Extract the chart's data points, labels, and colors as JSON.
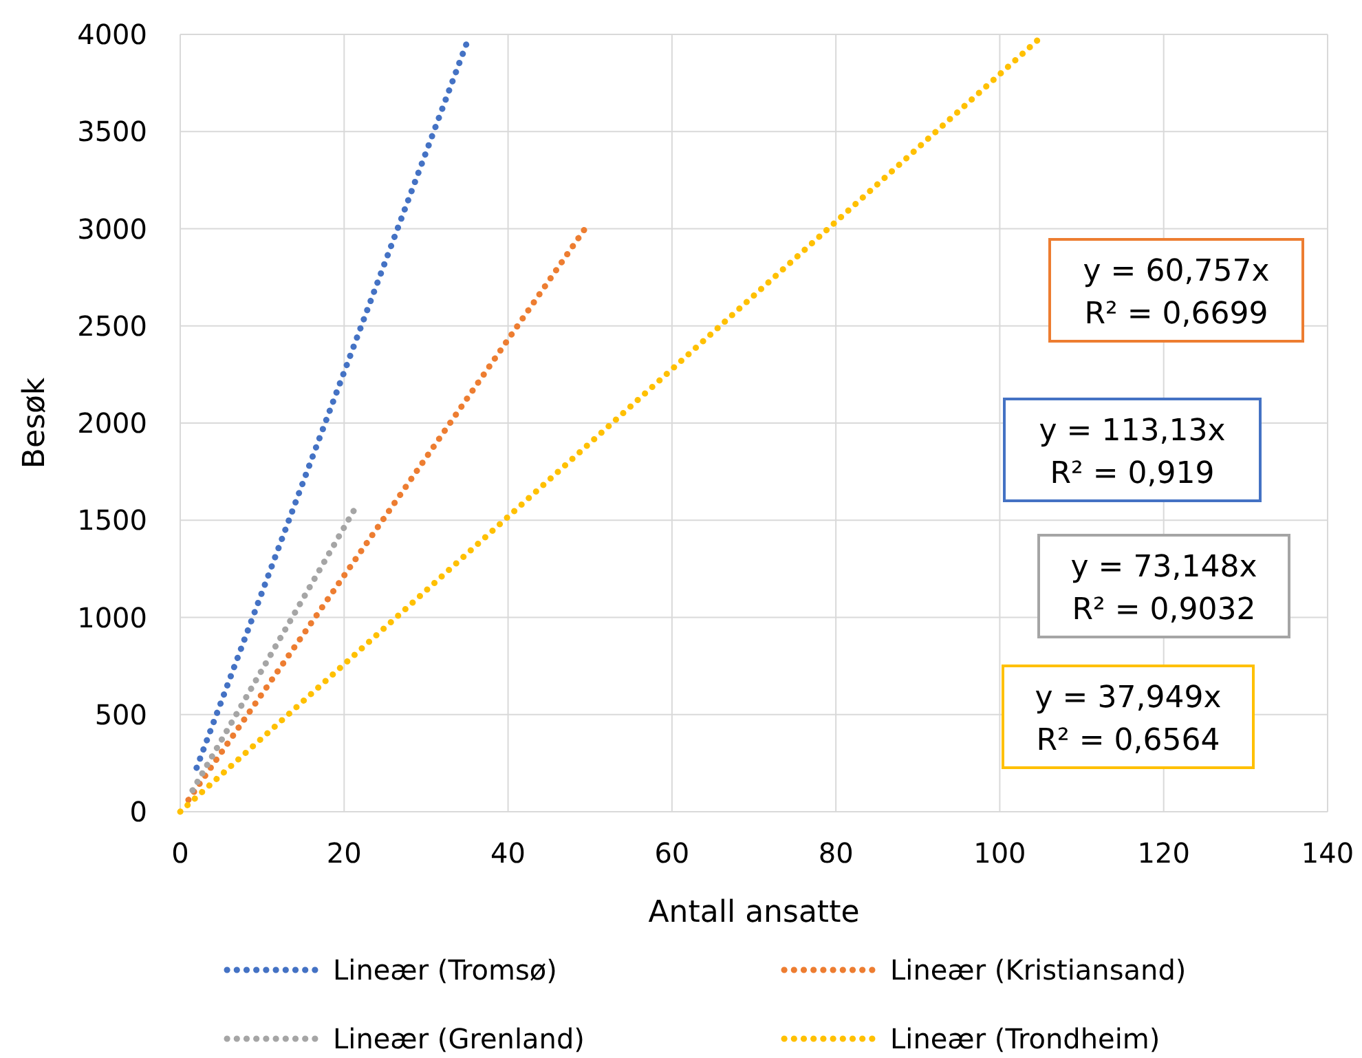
{
  "chart_data": {
    "type": "line",
    "xlabel": "Antall ansatte",
    "ylabel": "Besøk",
    "xlim": [
      0,
      140
    ],
    "xticks": [
      0,
      20,
      40,
      60,
      80,
      100,
      120,
      140
    ],
    "ylim": [
      0,
      4000
    ],
    "yticks": [
      0,
      500,
      1000,
      1500,
      2000,
      2500,
      3000,
      3500,
      4000
    ],
    "grid": true,
    "legend": "bottom",
    "marker": "none",
    "line_style": "dotted",
    "series": [
      {
        "name": "Lineær (Tromsø)",
        "color": "#4472c4",
        "x": [
          2.0,
          35.25
        ],
        "values": [
          226,
          3988
        ]
      },
      {
        "name": "Lineær (Kristiansand)",
        "color": "#ed7d31",
        "x": [
          1.0,
          49.4
        ],
        "values": [
          61,
          3001
        ]
      },
      {
        "name": "Lineær (Grenland)",
        "color": "#a5a5a5",
        "x": [
          1.5,
          21.5
        ],
        "values": [
          110,
          1573
        ]
      },
      {
        "name": "Lineær (Trondheim)",
        "color": "#ffc000",
        "x": [
          0,
          105.4
        ],
        "values": [
          0,
          4000
        ]
      }
    ],
    "annotations": [
      "y = 113,13x\nR² = 0,919",
      "y = 60,757x\nR² = 0,6699",
      "y = 73,148x\nR² = 0,9032",
      "y = 37,949x\nR² = 0,6564"
    ]
  }
}
